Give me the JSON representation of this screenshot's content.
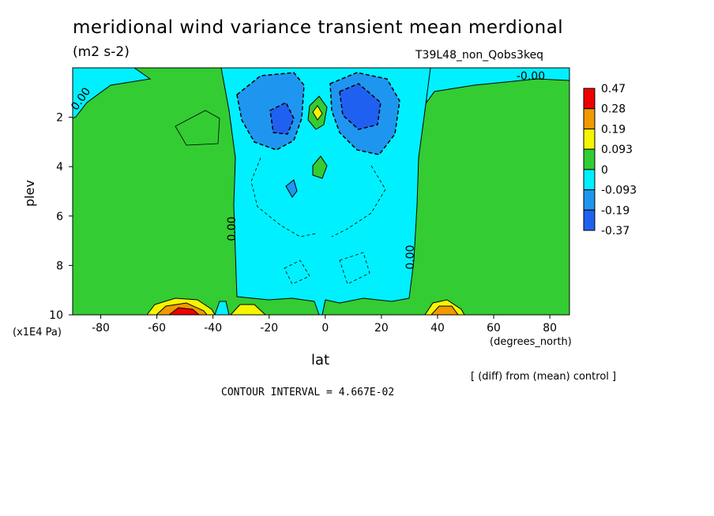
{
  "chart_data": {
    "type": "heatmap",
    "title": "meridional wind variance transient mean merdional",
    "units": "(m2 s-2)",
    "run_label": "T39L48_non_Qobs3keq",
    "xlabel": "lat",
    "x_unit": "(degrees_north)",
    "ylabel": "plev",
    "y_unit": "(x1E4 Pa)",
    "x_ticks": [
      "-80",
      "-60",
      "-40",
      "-20",
      "0",
      "20",
      "40",
      "60",
      "80"
    ],
    "x_tick_values": [
      -80,
      -60,
      -40,
      -20,
      0,
      20,
      40,
      60,
      80
    ],
    "y_ticks": [
      "2",
      "4",
      "6",
      "8",
      "10"
    ],
    "y_tick_values": [
      2,
      4,
      6,
      8,
      10
    ],
    "xlim": [
      -90,
      87
    ],
    "ylim": [
      10,
      0
    ],
    "contour_labels": [
      "0.00",
      "0.00",
      "0.00",
      "-0.00"
    ],
    "note": "[ (diff) from (mean) control ]",
    "contour_interval_label": "CONTOUR INTERVAL = 4.667E-02",
    "colorbar": {
      "labels": [
        "0.47",
        "0.28",
        "0.19",
        "0.093",
        "0",
        "-0.093",
        "-0.19",
        "-0.37"
      ],
      "colors": [
        "#ee0000",
        "#f09a00",
        "#f5f500",
        "#33cc33",
        "#00f0ff",
        "#1e96f0",
        "#2060f0"
      ]
    },
    "regions_described": {
      "green_positive_small": "poleward of about 30 degrees both hemispheres",
      "cyan_negative_small": "tropics -30 to 30 degrees, most levels",
      "blue_negative": "upper troposphere near -15 and +15 degrees, plev 1-3",
      "yellow_orange_red_positive": "near surface around -50 and -25 and 45 degrees"
    }
  }
}
